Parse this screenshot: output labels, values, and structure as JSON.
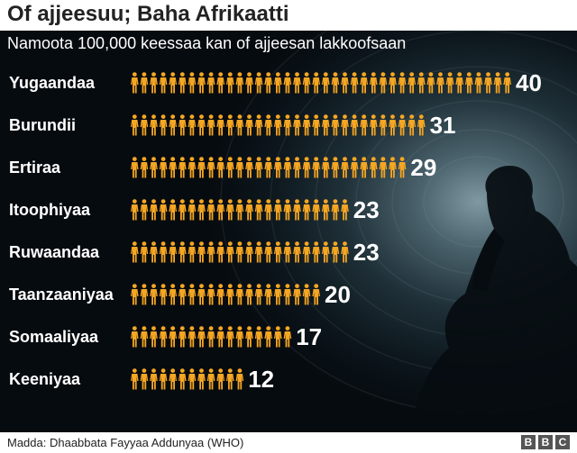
{
  "chart_data": {
    "type": "bar",
    "title": "Of ajjeesuu; Baha Afrikaatti",
    "subtitle": "Namoota 100,000 keessaa kan of ajjeesan lakkoofsaan",
    "source": "Madda: Dhaabbata Fayyaa Addunyaa (WHO)",
    "categories": [
      "Yugaandaa",
      "Burundii",
      "Ertiraa",
      "Itoophiyaa",
      "Ruwaandaa",
      "Taanzaaniyaa",
      "Somaaliyaa",
      "Keeniyaa"
    ],
    "values": [
      40,
      31,
      29,
      23,
      23,
      20,
      17,
      12
    ],
    "icon_color": "#f5a623"
  },
  "logo": [
    "B",
    "B",
    "C"
  ]
}
